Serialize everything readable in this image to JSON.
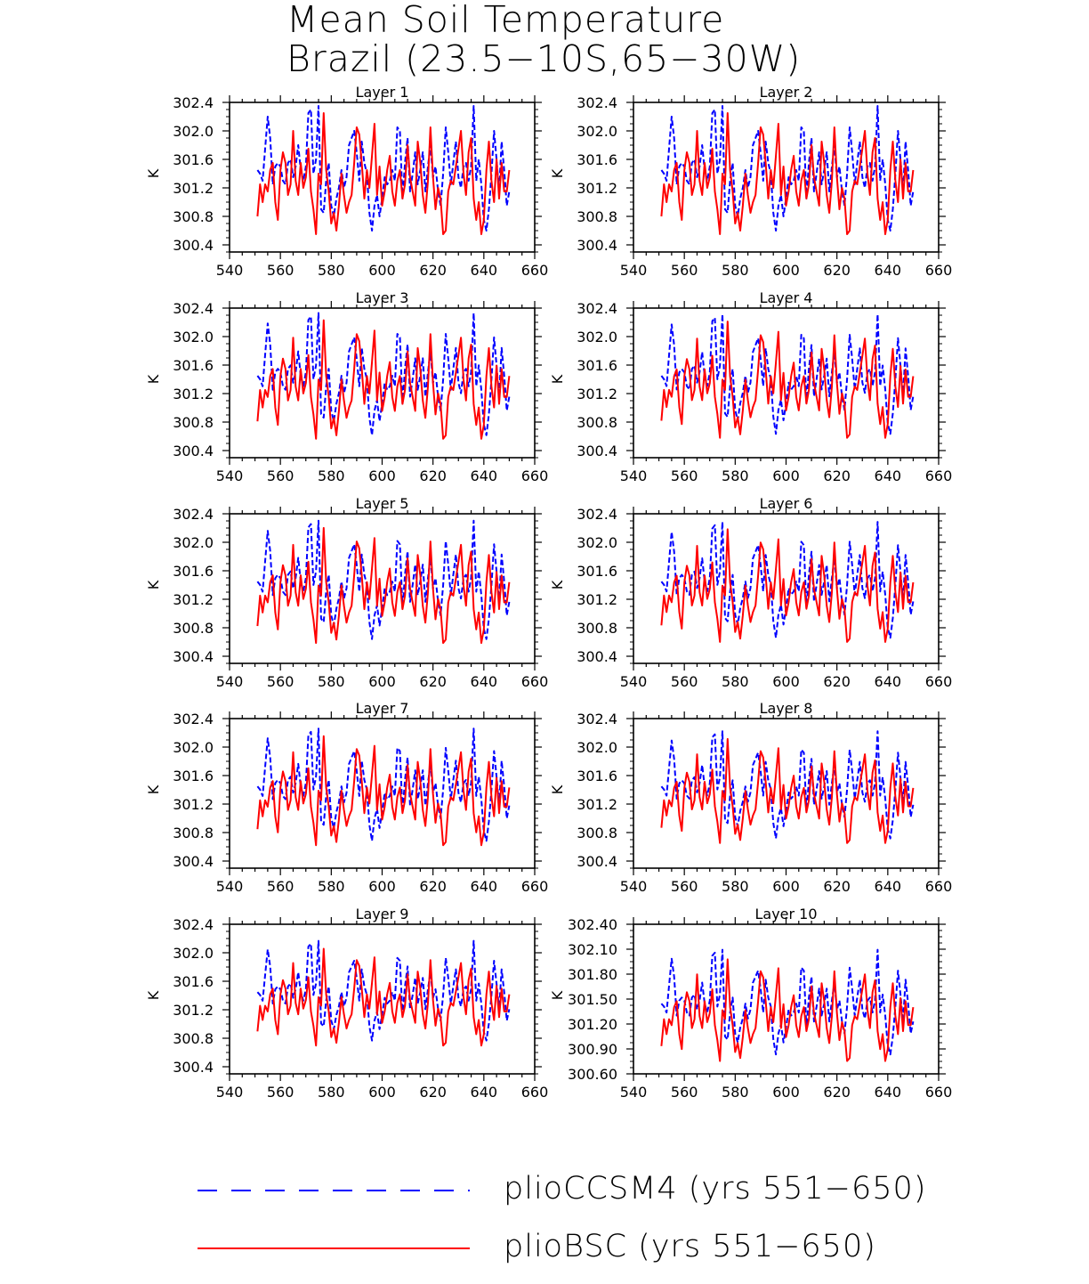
{
  "title": {
    "line1": "Mean Soil Temperature",
    "line2": "Brazil (23.5−10S,65−30W)"
  },
  "legend": {
    "series_a": "plioCCSM4 (yrs 551−650)",
    "series_b": "plioBSC (yrs 551−650)"
  },
  "colors": {
    "plioCCSM4": "#0000ff",
    "plioBSC": "#ff0000"
  },
  "chart_data": {
    "type": "line",
    "x_start": 551,
    "x_step": 1,
    "xlim": [
      540,
      660
    ],
    "xticks": [
      540,
      560,
      580,
      600,
      620,
      640,
      660
    ],
    "xtick_labels": [
      "540",
      "560",
      "580",
      "600",
      "620",
      "640",
      "660"
    ],
    "ylabel": "K",
    "base_series": [
      {
        "name": "plioCCSM4",
        "values": [
          301.45,
          301.4,
          301.3,
          301.75,
          302.2,
          301.9,
          301.25,
          301.5,
          301.55,
          301.5,
          301.3,
          301.25,
          301.55,
          301.6,
          301.35,
          301.5,
          301.8,
          301.45,
          301.3,
          301.5,
          302.25,
          302.3,
          301.4,
          301.6,
          302.35,
          300.9,
          300.85,
          301.3,
          301.55,
          300.95,
          300.8,
          301.05,
          301.2,
          301.45,
          301.2,
          301.35,
          301.8,
          301.9,
          302.0,
          301.7,
          301.3,
          301.85,
          301.55,
          301.4,
          300.85,
          300.6,
          300.95,
          301.1,
          300.8,
          301.05,
          301.35,
          301.25,
          301.3,
          301.45,
          301.3,
          302.05,
          302.0,
          301.05,
          301.55,
          301.9,
          301.15,
          301.4,
          301.7,
          301.25,
          301.45,
          301.7,
          301.15,
          301.5,
          301.8,
          301.35,
          301.5,
          301.15,
          300.95,
          301.4,
          302.05,
          301.7,
          301.25,
          301.55,
          301.85,
          301.35,
          301.2,
          301.5,
          301.55,
          301.3,
          301.5,
          302.35,
          301.3,
          301.6,
          301.25,
          300.75,
          300.6,
          300.9,
          301.4,
          302.0,
          301.6,
          301.15,
          301.85,
          301.45,
          300.95,
          301.15
        ],
        "style": "dashed"
      },
      {
        "name": "plioBSC",
        "values": [
          300.8,
          301.25,
          301.0,
          301.25,
          301.15,
          301.45,
          301.55,
          301.0,
          300.75,
          301.45,
          301.7,
          301.55,
          301.1,
          301.25,
          302.0,
          301.3,
          301.1,
          301.55,
          301.2,
          301.35,
          301.75,
          301.15,
          300.9,
          300.55,
          301.4,
          301.25,
          302.25,
          301.45,
          301.15,
          300.7,
          300.85,
          300.6,
          300.95,
          301.4,
          301.1,
          300.85,
          301.0,
          301.1,
          301.55,
          302.05,
          301.95,
          301.55,
          301.05,
          301.45,
          301.2,
          301.65,
          302.1,
          301.1,
          301.5,
          300.95,
          301.15,
          301.45,
          301.65,
          301.15,
          300.95,
          301.3,
          301.45,
          301.05,
          301.25,
          301.8,
          301.35,
          301.15,
          300.95,
          301.85,
          301.55,
          301.1,
          300.85,
          301.3,
          302.05,
          301.35,
          300.9,
          301.2,
          301.05,
          300.55,
          300.6,
          301.15,
          301.3,
          301.25,
          301.5,
          301.75,
          302.0,
          301.4,
          301.1,
          301.7,
          301.9,
          301.05,
          300.75,
          301.0,
          300.55,
          300.75,
          301.45,
          301.85,
          301.3,
          301.0,
          301.6,
          301.05,
          301.55,
          301.15,
          301.15,
          301.45
        ],
        "style": "solid"
      }
    ],
    "panels": [
      {
        "title": "Layer 1",
        "ylim": [
          300.3,
          302.4
        ],
        "yticks": [
          "302.4",
          "302.0",
          "301.6",
          "301.2",
          "300.8",
          "300.4"
        ],
        "scale": 1.0
      },
      {
        "title": "Layer 2",
        "ylim": [
          300.3,
          302.4
        ],
        "yticks": [
          "302.4",
          "302.0",
          "301.6",
          "301.2",
          "300.8",
          "300.4"
        ],
        "scale": 1.0
      },
      {
        "title": "Layer 3",
        "ylim": [
          300.3,
          302.4
        ],
        "yticks": [
          "302.4",
          "302.0",
          "301.6",
          "301.2",
          "300.8",
          "300.4"
        ],
        "scale": 0.98
      },
      {
        "title": "Layer 4",
        "ylim": [
          300.3,
          302.4
        ],
        "yticks": [
          "302.4",
          "302.0",
          "301.6",
          "301.2",
          "300.8",
          "300.4"
        ],
        "scale": 0.96
      },
      {
        "title": "Layer 5",
        "ylim": [
          300.3,
          302.4
        ],
        "yticks": [
          "302.4",
          "302.0",
          "301.6",
          "301.2",
          "300.8",
          "300.4"
        ],
        "scale": 0.95
      },
      {
        "title": "Layer 6",
        "ylim": [
          300.3,
          302.4
        ],
        "yticks": [
          "302.4",
          "302.0",
          "301.6",
          "301.2",
          "300.8",
          "300.4"
        ],
        "scale": 0.93
      },
      {
        "title": "Layer 7",
        "ylim": [
          300.3,
          302.4
        ],
        "yticks": [
          "302.4",
          "302.0",
          "301.6",
          "301.2",
          "300.8",
          "300.4"
        ],
        "scale": 0.9
      },
      {
        "title": "Layer 8",
        "ylim": [
          300.3,
          302.4
        ],
        "yticks": [
          "302.4",
          "302.0",
          "301.6",
          "301.2",
          "300.8",
          "300.4"
        ],
        "scale": 0.86
      },
      {
        "title": "Layer 9",
        "ylim": [
          300.3,
          302.4
        ],
        "yticks": [
          "302.4",
          "302.0",
          "301.6",
          "301.2",
          "300.8",
          "300.4"
        ],
        "scale": 0.8
      },
      {
        "title": "Layer 10",
        "ylim": [
          300.6,
          302.4
        ],
        "yticks": [
          "302.40",
          "302.10",
          "301.80",
          "301.50",
          "301.20",
          "300.90",
          "300.60"
        ],
        "scale": 0.72
      }
    ]
  }
}
